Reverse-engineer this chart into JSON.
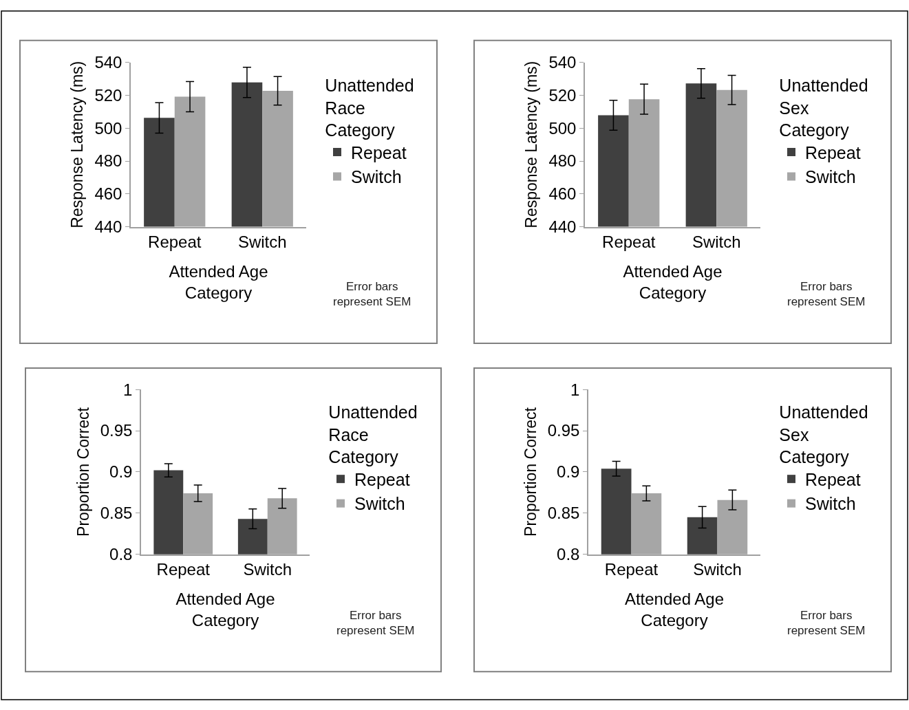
{
  "chart_data": [
    {
      "type": "bar",
      "categories": [
        "Repeat",
        "Switch"
      ],
      "xlabel": "Attended Age Category",
      "ylabel": "Response Latency (ms)",
      "legend_title": "Unattended Race Category",
      "legend": "right",
      "ylim": [
        440,
        540
      ],
      "yticks": [
        440,
        460,
        480,
        500,
        520,
        540
      ],
      "annotations": [
        "Error bars represent SEM"
      ],
      "series": [
        {
          "name": "Repeat",
          "color": "#404040",
          "values": [
            506.3,
            527.9
          ],
          "errors": [
            9.3,
            9.2
          ]
        },
        {
          "name": "Switch",
          "color": "#a6a6a6",
          "values": [
            519.2,
            522.8
          ],
          "errors": [
            9.2,
            8.7
          ]
        }
      ]
    },
    {
      "type": "bar",
      "categories": [
        "Repeat",
        "Switch"
      ],
      "xlabel": "Attended Age Category",
      "ylabel": "Response Latency (ms)",
      "legend_title": "Unattended Sex Category",
      "legend": "right",
      "ylim": [
        440,
        540
      ],
      "yticks": [
        440,
        460,
        480,
        500,
        520,
        540
      ],
      "annotations": [
        "Error bars represent SEM"
      ],
      "series": [
        {
          "name": "Repeat",
          "color": "#404040",
          "values": [
            507.9,
            527.3
          ],
          "errors": [
            9.1,
            9.0
          ]
        },
        {
          "name": "Switch",
          "color": "#a6a6a6",
          "values": [
            517.7,
            523.3
          ],
          "errors": [
            9.2,
            8.9
          ]
        }
      ]
    },
    {
      "type": "bar",
      "categories": [
        "Repeat",
        "Switch"
      ],
      "xlabel": "Attended Age Category",
      "ylabel": "Proportion Correct",
      "legend_title": "Unattended Race Category",
      "legend": "right",
      "ylim": [
        0.8,
        1
      ],
      "yticks": [
        0.8,
        0.85,
        0.9,
        0.95,
        1
      ],
      "annotations": [
        "Error bars represent SEM"
      ],
      "series": [
        {
          "name": "Repeat",
          "color": "#404040",
          "values": [
            0.902,
            0.843
          ],
          "errors": [
            0.008,
            0.012
          ]
        },
        {
          "name": "Switch",
          "color": "#a6a6a6",
          "values": [
            0.874,
            0.868
          ],
          "errors": [
            0.01,
            0.012
          ]
        }
      ]
    },
    {
      "type": "bar",
      "categories": [
        "Repeat",
        "Switch"
      ],
      "xlabel": "Attended Age Category",
      "ylabel": "Proportion Correct",
      "legend_title": "Unattended Sex Category",
      "legend": "right",
      "ylim": [
        0.8,
        1
      ],
      "yticks": [
        0.8,
        0.85,
        0.9,
        0.95,
        1
      ],
      "annotations": [
        "Error bars represent SEM"
      ],
      "series": [
        {
          "name": "Repeat",
          "color": "#404040",
          "values": [
            0.904,
            0.845
          ],
          "errors": [
            0.009,
            0.013
          ]
        },
        {
          "name": "Switch",
          "color": "#a6a6a6",
          "values": [
            0.874,
            0.866
          ],
          "errors": [
            0.009,
            0.012
          ]
        }
      ]
    }
  ]
}
